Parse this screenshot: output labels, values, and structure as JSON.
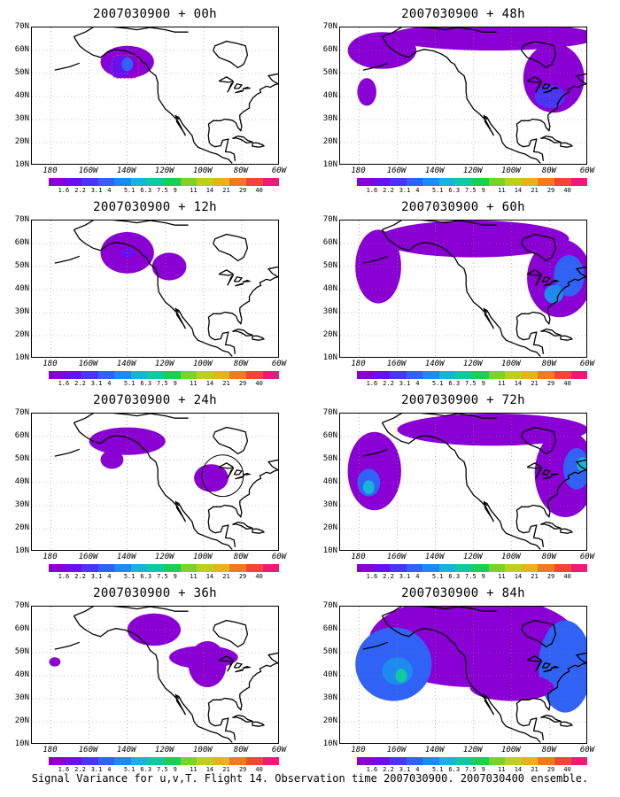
{
  "caption": "Signal Variance for u,v,T. Flight 14. Observation time 2007030900. 2007030400 ensemble.",
  "lat_labels": [
    "70N",
    "60N",
    "50N",
    "40N",
    "30N",
    "20N",
    "10N"
  ],
  "lon_labels": [
    "180",
    "160W",
    "140W",
    "120W",
    "100W",
    "80W",
    "60W"
  ],
  "colorbar": {
    "labels": [
      "1.6",
      "2.2",
      "3.1",
      "4",
      "5.1",
      "6.3",
      "7.5",
      "9",
      "11",
      "14",
      "21",
      "29",
      "40"
    ],
    "colors": [
      "#8a00d4",
      "#6a10ee",
      "#4b35f5",
      "#2f62f5",
      "#1e8af0",
      "#17b3d8",
      "#10c9a0",
      "#1bcf55",
      "#7ad22b",
      "#bdd020",
      "#e8b21e",
      "#f07a22",
      "#f2453a",
      "#ee1a78"
    ]
  },
  "panels": [
    {
      "id": "p00",
      "title": "2007030900 + 00h",
      "blobs": [
        {
          "x": -140,
          "y": 55,
          "rx": 14,
          "ry": 7,
          "c": "#8a00d4"
        },
        {
          "x": -144,
          "y": 53,
          "rx": 6,
          "ry": 5,
          "c": "#6a10ee"
        },
        {
          "x": -140,
          "y": 54,
          "rx": 3,
          "ry": 3,
          "c": "#2f62f5"
        }
      ],
      "markers": [
        {
          "type": "dashed-box",
          "x": -148,
          "y": 58,
          "w": 14,
          "h": 10,
          "c": "#ee1a78"
        }
      ]
    },
    {
      "id": "p48",
      "title": "2007030900 + 48h",
      "blobs": [
        {
          "x": -168,
          "y": 60,
          "rx": 18,
          "ry": 8,
          "c": "#8a00d4"
        },
        {
          "x": -110,
          "y": 66,
          "rx": 55,
          "ry": 6,
          "c": "#8a00d4"
        },
        {
          "x": -78,
          "y": 48,
          "rx": 16,
          "ry": 15,
          "c": "#8a00d4"
        },
        {
          "x": -80,
          "y": 40,
          "rx": 8,
          "ry": 5,
          "c": "#4b35f5"
        },
        {
          "x": -176,
          "y": 42,
          "rx": 5,
          "ry": 6,
          "c": "#8a00d4"
        }
      ],
      "markers": []
    },
    {
      "id": "p12",
      "title": "2007030900 + 12h",
      "blobs": [
        {
          "x": -140,
          "y": 56,
          "rx": 14,
          "ry": 9,
          "c": "#8a00d4"
        },
        {
          "x": -118,
          "y": 50,
          "rx": 9,
          "ry": 6,
          "c": "#8a00d4"
        },
        {
          "x": -140,
          "y": 56,
          "rx": 4,
          "ry": 2,
          "c": "#6a10ee"
        }
      ],
      "markers": []
    },
    {
      "id": "p60",
      "title": "2007030900 + 60h",
      "blobs": [
        {
          "x": -170,
          "y": 50,
          "rx": 12,
          "ry": 16,
          "c": "#8a00d4"
        },
        {
          "x": -120,
          "y": 62,
          "rx": 50,
          "ry": 8,
          "c": "#8a00d4"
        },
        {
          "x": -75,
          "y": 45,
          "rx": 17,
          "ry": 17,
          "c": "#8a00d4"
        },
        {
          "x": -70,
          "y": 46,
          "rx": 8,
          "ry": 9,
          "c": "#2f62f5"
        },
        {
          "x": -78,
          "y": 38,
          "rx": 5,
          "ry": 4,
          "c": "#1e8af0"
        }
      ],
      "markers": []
    },
    {
      "id": "p24",
      "title": "2007030900 + 24h",
      "blobs": [
        {
          "x": -140,
          "y": 58,
          "rx": 20,
          "ry": 6,
          "c": "#8a00d4"
        },
        {
          "x": -96,
          "y": 42,
          "rx": 9,
          "ry": 6,
          "c": "#8a00d4"
        },
        {
          "x": -148,
          "y": 50,
          "rx": 6,
          "ry": 4,
          "c": "#8a00d4"
        }
      ],
      "markers": [
        {
          "type": "circle",
          "x": -90,
          "y": 43,
          "r": 9,
          "c": "#000000"
        }
      ]
    },
    {
      "id": "p72",
      "title": "2007030900 + 72h",
      "blobs": [
        {
          "x": -172,
          "y": 45,
          "rx": 14,
          "ry": 17,
          "c": "#8a00d4"
        },
        {
          "x": -175,
          "y": 40,
          "rx": 6,
          "ry": 6,
          "c": "#2f62f5"
        },
        {
          "x": -175,
          "y": 38,
          "rx": 3,
          "ry": 3,
          "c": "#17b3d8"
        },
        {
          "x": -110,
          "y": 63,
          "rx": 50,
          "ry": 7,
          "c": "#8a00d4"
        },
        {
          "x": -72,
          "y": 44,
          "rx": 16,
          "ry": 19,
          "c": "#8a00d4"
        },
        {
          "x": -66,
          "y": 46,
          "rx": 7,
          "ry": 9,
          "c": "#2f62f5"
        },
        {
          "x": -63,
          "y": 48,
          "rx": 3,
          "ry": 3,
          "c": "#17b3d8"
        }
      ],
      "markers": []
    },
    {
      "id": "p36",
      "title": "2007030900 + 36h",
      "blobs": [
        {
          "x": -126,
          "y": 60,
          "rx": 14,
          "ry": 7,
          "c": "#8a00d4"
        },
        {
          "x": -98,
          "y": 45,
          "rx": 10,
          "ry": 10,
          "c": "#8a00d4"
        },
        {
          "x": -100,
          "y": 48,
          "rx": 18,
          "ry": 5,
          "c": "#8a00d4"
        },
        {
          "x": -178,
          "y": 46,
          "rx": 3,
          "ry": 2,
          "c": "#8a00d4"
        }
      ],
      "markers": []
    },
    {
      "id": "p84",
      "title": "2007030900 + 84h",
      "blobs": [
        {
          "x": -120,
          "y": 55,
          "rx": 55,
          "ry": 20,
          "c": "#8a00d4"
        },
        {
          "x": -162,
          "y": 45,
          "rx": 20,
          "ry": 16,
          "c": "#2f62f5"
        },
        {
          "x": -160,
          "y": 42,
          "rx": 8,
          "ry": 6,
          "c": "#1e8af0"
        },
        {
          "x": -158,
          "y": 40,
          "rx": 3,
          "ry": 3,
          "c": "#10c9a0"
        },
        {
          "x": -72,
          "y": 44,
          "rx": 14,
          "ry": 20,
          "c": "#2f62f5"
        },
        {
          "x": -100,
          "y": 35,
          "rx": 22,
          "ry": 6,
          "c": "#8a00d4"
        }
      ],
      "markers": []
    }
  ]
}
